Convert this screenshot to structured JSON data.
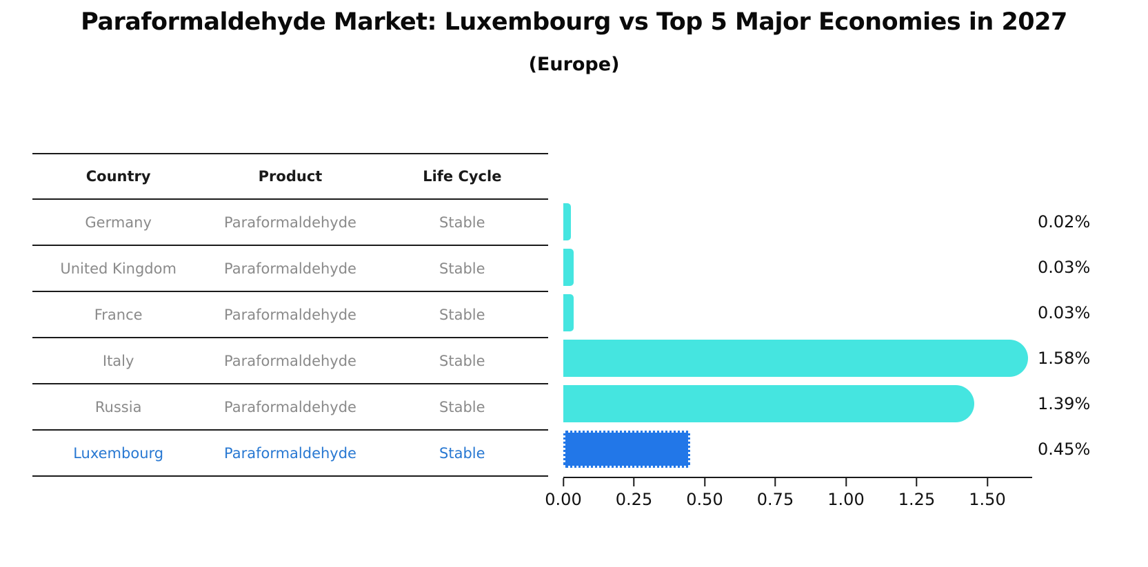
{
  "title": "Paraformaldehyde Market: Luxembourg vs Top 5 Major Economies in 2027",
  "subtitle": "(Europe)",
  "table": {
    "headers": [
      "Country",
      "Product",
      "Life Cycle"
    ]
  },
  "chart_data": {
    "type": "bar",
    "orientation": "horizontal",
    "title": "Paraformaldehyde Market: Luxembourg vs Top 5 Major Economies in 2027",
    "subtitle": "(Europe)",
    "xlabel": "",
    "ylabel": "",
    "xlim": [
      0,
      1.66
    ],
    "xticks": [
      "0.00",
      "0.25",
      "0.50",
      "0.75",
      "1.00",
      "1.25",
      "1.50"
    ],
    "grid": false,
    "legend": false,
    "rows": [
      {
        "country": "Germany",
        "product": "Paraformaldehyde",
        "life_cycle": "Stable",
        "value": 0.02,
        "label": "0.02%",
        "highlight": false
      },
      {
        "country": "United Kingdom",
        "product": "Paraformaldehyde",
        "life_cycle": "Stable",
        "value": 0.03,
        "label": "0.03%",
        "highlight": false
      },
      {
        "country": "France",
        "product": "Paraformaldehyde",
        "life_cycle": "Stable",
        "value": 0.03,
        "label": "0.03%",
        "highlight": false
      },
      {
        "country": "Italy",
        "product": "Paraformaldehyde",
        "life_cycle": "Stable",
        "value": 1.58,
        "label": "1.58%",
        "highlight": false
      },
      {
        "country": "Russia",
        "product": "Paraformaldehyde",
        "life_cycle": "Stable",
        "value": 1.39,
        "label": "1.39%",
        "highlight": false
      },
      {
        "country": "Luxembourg",
        "product": "Paraformaldehyde",
        "life_cycle": "Stable",
        "value": 0.45,
        "label": "0.45%",
        "highlight": true
      }
    ],
    "colors": {
      "bar": "#45e5e0",
      "highlight_bar": "#2277e8",
      "highlight_text": "#2878d2",
      "row_text": "#8a8a8a",
      "header_text": "#1a1a1a",
      "value_text": "#111111",
      "axis": "#1a1a1a"
    }
  }
}
